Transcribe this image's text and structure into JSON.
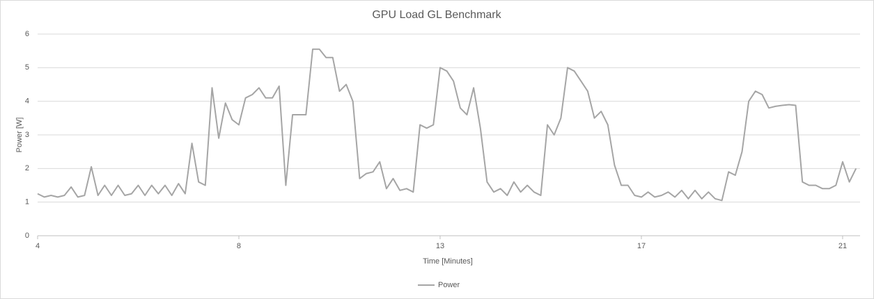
{
  "chart_data": {
    "type": "line",
    "title": "GPU Load GL Benchmark",
    "x_label": "Time [Minutes]",
    "y_label": "Power [W]",
    "categories": [
      4,
      null,
      null,
      null,
      null,
      null,
      null,
      null,
      null,
      null,
      null,
      null,
      null,
      null,
      null,
      null,
      null,
      null,
      null,
      null,
      null,
      null,
      null,
      null,
      null,
      null,
      null,
      null,
      null,
      null,
      8,
      null,
      null,
      null,
      null,
      null,
      null,
      null,
      null,
      null,
      null,
      null,
      null,
      null,
      null,
      null,
      null,
      null,
      null,
      null,
      null,
      null,
      null,
      null,
      null,
      null,
      null,
      null,
      null,
      null,
      13,
      null,
      null,
      null,
      null,
      null,
      null,
      null,
      null,
      null,
      null,
      null,
      null,
      null,
      null,
      null,
      null,
      null,
      null,
      null,
      null,
      null,
      null,
      null,
      null,
      null,
      null,
      null,
      null,
      null,
      17,
      null,
      null,
      null,
      null,
      null,
      null,
      null,
      null,
      null,
      null,
      null,
      null,
      null,
      null,
      null,
      null,
      null,
      null,
      null,
      null,
      null,
      null,
      null,
      null,
      null,
      null,
      null,
      null,
      null,
      21,
      null,
      null
    ],
    "series": [
      {
        "name": "Power",
        "color": "#a5a5a5",
        "values": [
          1.25,
          1.15,
          1.2,
          1.15,
          1.2,
          1.45,
          1.15,
          1.2,
          2.05,
          1.2,
          1.5,
          1.2,
          1.5,
          1.2,
          1.25,
          1.5,
          1.2,
          1.5,
          1.25,
          1.5,
          1.2,
          1.55,
          1.25,
          2.75,
          1.6,
          1.5,
          4.4,
          2.9,
          3.95,
          3.45,
          3.3,
          4.1,
          4.2,
          4.4,
          4.1,
          4.1,
          4.45,
          1.5,
          3.6,
          3.6,
          3.6,
          5.55,
          5.55,
          5.3,
          5.3,
          4.3,
          4.5,
          4.0,
          1.7,
          1.85,
          1.9,
          2.2,
          1.4,
          1.7,
          1.35,
          1.4,
          1.3,
          3.3,
          3.2,
          3.3,
          5.0,
          4.9,
          4.6,
          3.8,
          3.6,
          4.4,
          3.2,
          1.6,
          1.3,
          1.4,
          1.2,
          1.6,
          1.3,
          1.5,
          1.3,
          1.2,
          3.3,
          3.0,
          3.5,
          5.0,
          4.9,
          4.6,
          4.3,
          3.5,
          3.7,
          3.3,
          2.1,
          1.5,
          1.5,
          1.2,
          1.15,
          1.3,
          1.15,
          1.2,
          1.3,
          1.15,
          1.35,
          1.1,
          1.35,
          1.1,
          1.3,
          1.1,
          1.05,
          1.9,
          1.8,
          2.5,
          4.0,
          4.3,
          4.2,
          3.8,
          3.85,
          3.88,
          3.9,
          3.88,
          1.6,
          1.5,
          1.5,
          1.4,
          1.4,
          1.5,
          2.2,
          1.6,
          2.0
        ]
      }
    ],
    "ylim": [
      0,
      6
    ],
    "yticks": [
      0,
      1,
      2,
      3,
      4,
      5,
      6
    ],
    "grid": true,
    "legend": "bottom"
  }
}
